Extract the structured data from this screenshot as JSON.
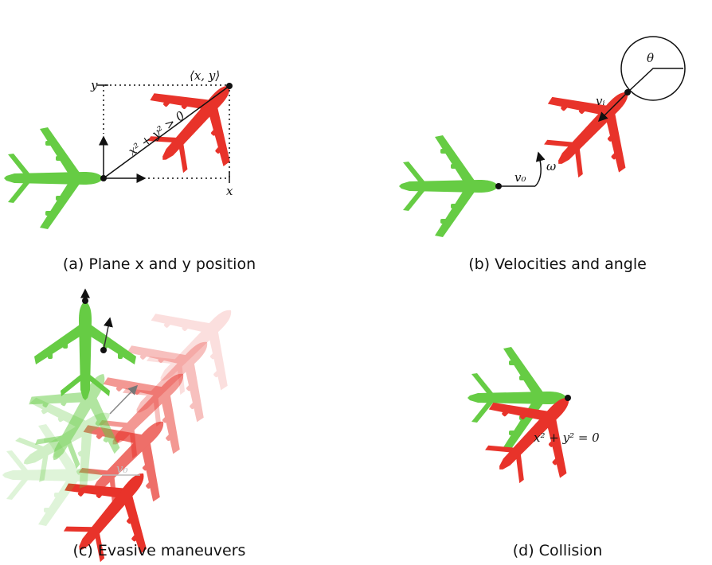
{
  "panels": [
    {
      "caption": "(a) Plane x and y position",
      "labels": {
        "point": "⟨x, y⟩",
        "y": "y",
        "x": "x",
        "distance": "x² + y² > 0"
      }
    },
    {
      "caption": "(b) Velocities and angle",
      "labels": {
        "v0": "v₀",
        "omega": "ω",
        "theta": "θ",
        "vi": "vᵢ"
      }
    },
    {
      "caption": "(c) Evasive maneuvers",
      "labels": {
        "v0": "v₀"
      }
    },
    {
      "caption": "(d) Collision",
      "labels": {
        "distance": "x² + y² = 0"
      }
    }
  ]
}
